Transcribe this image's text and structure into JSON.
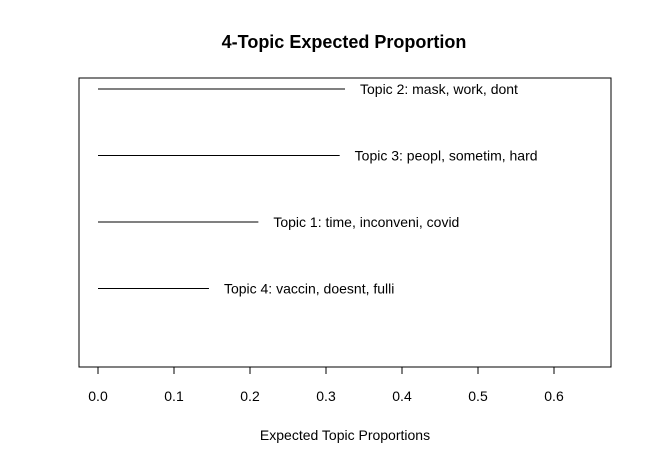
{
  "chart_data": {
    "type": "bar",
    "title": "4-Topic Expected Proportion",
    "xlabel": "Expected Topic Proportions",
    "ylabel": "",
    "xlim": [
      0,
      0.65
    ],
    "xticks": [
      0.0,
      0.1,
      0.2,
      0.3,
      0.4,
      0.5,
      0.6
    ],
    "xtick_labels": [
      "0.0",
      "0.1",
      "0.2",
      "0.3",
      "0.4",
      "0.5",
      "0.6"
    ],
    "orientation": "horizontal",
    "grid": false,
    "categories": [
      "Topic 2: mask, work, dont",
      "Topic 3: peopl, sometim, hard",
      "Topic 1: time, inconveni, covid",
      "Topic 4: vaccin, doesnt, fulli"
    ],
    "values": [
      0.325,
      0.318,
      0.211,
      0.146
    ]
  }
}
